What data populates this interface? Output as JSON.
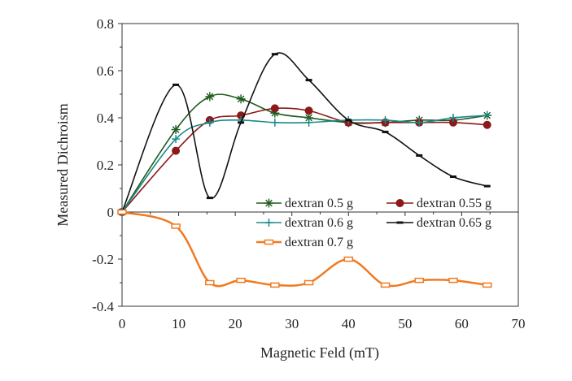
{
  "chart_data": {
    "type": "line",
    "title": "",
    "xlabel": "Magnetic Feld (mT)",
    "ylabel": "Measured Dichroism",
    "xlim": [
      0,
      70
    ],
    "ylim": [
      -0.4,
      0.8
    ],
    "xticks": [
      0,
      10,
      20,
      30,
      40,
      50,
      60,
      70
    ],
    "yticks": [
      -0.4,
      -0.2,
      0,
      0.2,
      0.4,
      0.6,
      0.8
    ],
    "xtick_labels": [
      "0",
      "10",
      "20",
      "30",
      "40",
      "50",
      "60",
      "70"
    ],
    "ytick_labels": [
      "-0.4",
      "-0.2",
      "0",
      "0.2",
      "0.4",
      "0.6",
      "0.8"
    ],
    "grid": false,
    "legend_position": "center-right",
    "series": [
      {
        "name": "dextran 0.5  g",
        "color": "#1f5c1f",
        "marker": "asterisk",
        "x": [
          0,
          9.5,
          15.5,
          21,
          27,
          33,
          40,
          46.5,
          52.5,
          58.5,
          64.5
        ],
        "y": [
          0,
          0.35,
          0.49,
          0.48,
          0.42,
          0.4,
          0.38,
          0.38,
          0.39,
          0.39,
          0.41
        ]
      },
      {
        "name": "dextran 0.55 g",
        "color": "#8b1a1a",
        "marker": "circle",
        "x": [
          0,
          9.5,
          15.5,
          21,
          27,
          33,
          40,
          46.5,
          52.5,
          58.5,
          64.5
        ],
        "y": [
          0,
          0.26,
          0.39,
          0.41,
          0.44,
          0.43,
          0.38,
          0.38,
          0.38,
          0.38,
          0.37
        ]
      },
      {
        "name": "dextran 0.6  g",
        "color": "#1a8a8a",
        "marker": "plus",
        "x": [
          0,
          9.5,
          15.5,
          21,
          27,
          33,
          40,
          46.5,
          52.5,
          58.5,
          64.5
        ],
        "y": [
          0,
          0.31,
          0.38,
          0.39,
          0.38,
          0.38,
          0.39,
          0.39,
          0.38,
          0.4,
          0.41
        ]
      },
      {
        "name": "dextran 0.65 g",
        "color": "#111111",
        "marker": "dash",
        "x": [
          0,
          9.5,
          15.5,
          21,
          27,
          33,
          40,
          46.5,
          52.5,
          58.5,
          64.5
        ],
        "y": [
          0,
          0.54,
          0.06,
          0.38,
          0.67,
          0.56,
          0.39,
          0.34,
          0.24,
          0.15,
          0.11
        ]
      },
      {
        "name": "dextran 0.7  g",
        "color": "#f07a20",
        "marker": "square",
        "x": [
          0,
          9.5,
          15.5,
          21,
          27,
          33,
          40,
          46.5,
          52.5,
          58.5,
          64.5
        ],
        "y": [
          0,
          -0.06,
          -0.3,
          -0.29,
          -0.31,
          -0.3,
          -0.2,
          -0.31,
          -0.29,
          -0.29,
          -0.31
        ]
      }
    ]
  }
}
